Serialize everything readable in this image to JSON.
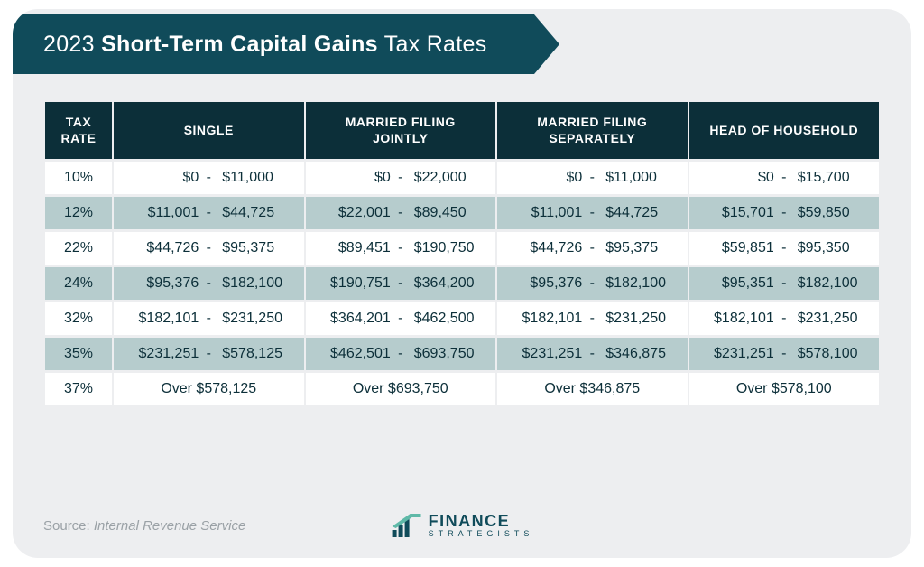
{
  "colors": {
    "header_bg": "#104b5a",
    "table_header_bg": "#0c2f39",
    "row_alt_bg": "#b6cccd",
    "row_bg": "#ffffff",
    "card_bg": "#edeef0",
    "text_dark": "#0c2f39",
    "source_text": "#9aa1a6"
  },
  "title": {
    "prefix": "2023 ",
    "bold": "Short-Term Capital Gains",
    "suffix": " Tax Rates"
  },
  "table": {
    "type": "table",
    "columns": [
      {
        "key": "rate",
        "label_line1": "TAX",
        "label_line2": "RATE"
      },
      {
        "key": "single",
        "label_line1": "SINGLE",
        "label_line2": ""
      },
      {
        "key": "mfj",
        "label_line1": "MARRIED FILING",
        "label_line2": "JOINTLY"
      },
      {
        "key": "mfs",
        "label_line1": "MARRIED FILING",
        "label_line2": "SEPARATELY"
      },
      {
        "key": "hoh",
        "label_line1": "HEAD OF HOUSEHOLD",
        "label_line2": ""
      }
    ],
    "rows": [
      {
        "rate": "10%",
        "alt": false,
        "single": {
          "kind": "range",
          "a": "$0",
          "b": "$11,000"
        },
        "mfj": {
          "kind": "range",
          "a": "$0",
          "b": "$22,000"
        },
        "mfs": {
          "kind": "range",
          "a": "$0",
          "b": "$11,000"
        },
        "hoh": {
          "kind": "range",
          "a": "$0",
          "b": "$15,700"
        }
      },
      {
        "rate": "12%",
        "alt": true,
        "single": {
          "kind": "range",
          "a": "$11,001",
          "b": "$44,725"
        },
        "mfj": {
          "kind": "range",
          "a": "$22,001",
          "b": "$89,450"
        },
        "mfs": {
          "kind": "range",
          "a": "$11,001",
          "b": "$44,725"
        },
        "hoh": {
          "kind": "range",
          "a": "$15,701",
          "b": "$59,850"
        }
      },
      {
        "rate": "22%",
        "alt": false,
        "single": {
          "kind": "range",
          "a": "$44,726",
          "b": "$95,375"
        },
        "mfj": {
          "kind": "range",
          "a": "$89,451",
          "b": "$190,750"
        },
        "mfs": {
          "kind": "range",
          "a": "$44,726",
          "b": "$95,375"
        },
        "hoh": {
          "kind": "range",
          "a": "$59,851",
          "b": "$95,350"
        }
      },
      {
        "rate": "24%",
        "alt": true,
        "single": {
          "kind": "range",
          "a": "$95,376",
          "b": "$182,100"
        },
        "mfj": {
          "kind": "range",
          "a": "$190,751",
          "b": "$364,200"
        },
        "mfs": {
          "kind": "range",
          "a": "$95,376",
          "b": "$182,100"
        },
        "hoh": {
          "kind": "range",
          "a": "$95,351",
          "b": "$182,100"
        }
      },
      {
        "rate": "32%",
        "alt": false,
        "single": {
          "kind": "range",
          "a": "$182,101",
          "b": "$231,250"
        },
        "mfj": {
          "kind": "range",
          "a": "$364,201",
          "b": "$462,500"
        },
        "mfs": {
          "kind": "range",
          "a": "$182,101",
          "b": "$231,250"
        },
        "hoh": {
          "kind": "range",
          "a": "$182,101",
          "b": "$231,250"
        }
      },
      {
        "rate": "35%",
        "alt": true,
        "single": {
          "kind": "range",
          "a": "$231,251",
          "b": "$578,125"
        },
        "mfj": {
          "kind": "range",
          "a": "$462,501",
          "b": "$693,750"
        },
        "mfs": {
          "kind": "range",
          "a": "$231,251",
          "b": "$346,875"
        },
        "hoh": {
          "kind": "range",
          "a": "$231,251",
          "b": "$578,100"
        }
      },
      {
        "rate": "37%",
        "alt": false,
        "single": {
          "kind": "over",
          "text": "Over $578,125"
        },
        "mfj": {
          "kind": "over",
          "text": "Over $693,750"
        },
        "mfs": {
          "kind": "over",
          "text": "Over $346,875"
        },
        "hoh": {
          "kind": "over",
          "text": "Over $578,100"
        }
      }
    ],
    "separator": "-"
  },
  "source": {
    "label": "Source: ",
    "value": "Internal Revenue Service"
  },
  "logo": {
    "line1": "FINANCE",
    "line2": "STRATEGISTS"
  }
}
